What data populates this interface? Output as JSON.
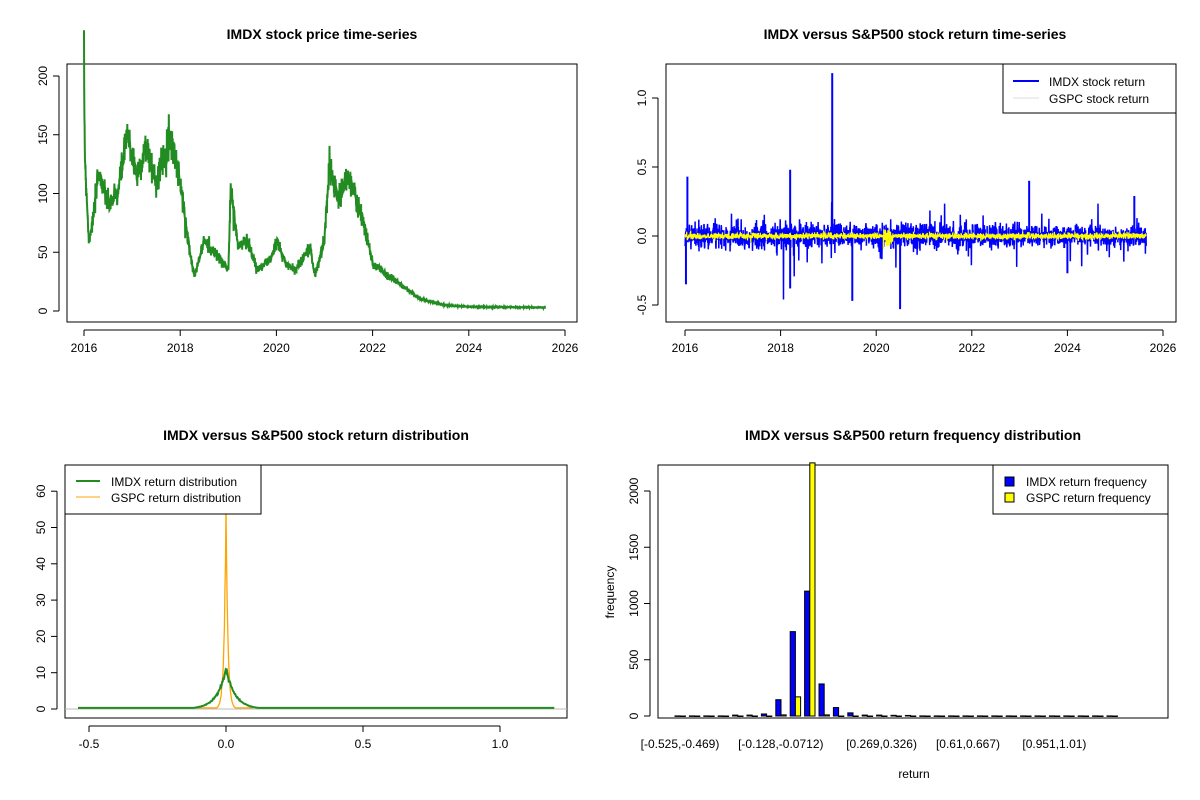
{
  "colors": {
    "price": "#228B22",
    "imdx_ret": "#0000FF",
    "gspc_ret": "#FFFF00",
    "imdx_dens": "#228B22",
    "gspc_dens": "#FFA500"
  },
  "chart_data": [
    {
      "type": "line",
      "title": "IMDX stock price time-series",
      "xlabel": "",
      "ylabel": "",
      "xlim": [
        2016,
        2026
      ],
      "ylim": [
        0,
        200
      ],
      "xticks": [
        "2016",
        "2018",
        "2020",
        "2022",
        "2024",
        "2026"
      ],
      "yticks": [
        "0",
        "50",
        "100",
        "150",
        "200"
      ],
      "series": [
        {
          "name": "IMDX price",
          "x": [
            2016.0,
            2016.02,
            2016.1,
            2016.2,
            2016.3,
            2016.5,
            2016.7,
            2016.9,
            2017.1,
            2017.3,
            2017.5,
            2017.8,
            2018.0,
            2018.2,
            2018.3,
            2018.5,
            2018.8,
            2019.0,
            2019.05,
            2019.2,
            2019.4,
            2019.6,
            2019.9,
            2020.0,
            2020.2,
            2020.4,
            2020.7,
            2020.8,
            2021.0,
            2021.1,
            2021.3,
            2021.5,
            2021.7,
            2021.9,
            2022.0,
            2022.5,
            2023.0,
            2023.5,
            2024.0,
            2025.6
          ],
          "y": [
            200,
            130,
            60,
            80,
            120,
            90,
            100,
            150,
            115,
            140,
            110,
            150,
            110,
            50,
            30,
            60,
            45,
            35,
            105,
            55,
            60,
            35,
            45,
            60,
            40,
            35,
            55,
            30,
            60,
            125,
            95,
            115,
            90,
            60,
            40,
            25,
            10,
            5,
            3.5,
            3
          ]
        }
      ]
    },
    {
      "type": "line",
      "title": "IMDX versus S&P500 stock return time-series",
      "xlim": [
        2016,
        2026
      ],
      "ylim": [
        -0.55,
        1.2
      ],
      "xticks": [
        "2016",
        "2018",
        "2020",
        "2022",
        "2024",
        "2026"
      ],
      "yticks": [
        "-0.5",
        "0.0",
        "0.5",
        "1.0"
      ],
      "legend": {
        "position": "top-right",
        "entries": [
          "IMDX stock return",
          "GSPC stock return"
        ]
      },
      "series": [
        {
          "name": "IMDX stock return",
          "spikes": [
            [
              2016.02,
              -0.35
            ],
            [
              2016.05,
              0.43
            ],
            [
              2018.2,
              0.48
            ],
            [
              2018.2,
              -0.38
            ],
            [
              2019.08,
              1.18
            ],
            [
              2019.5,
              -0.47
            ],
            [
              2020.5,
              -0.53
            ],
            [
              2023.2,
              0.4
            ],
            [
              2024.0,
              -0.27
            ],
            [
              2025.4,
              0.29
            ]
          ]
        },
        {
          "name": "GSPC stock return"
        }
      ]
    },
    {
      "type": "line",
      "title": "IMDX versus S&P500 stock return distribution",
      "xlim": [
        -0.55,
        1.22
      ],
      "ylim": [
        0,
        65
      ],
      "xticks": [
        "-0.5",
        "0.0",
        "0.5",
        "1.0"
      ],
      "yticks": [
        "0",
        "10",
        "20",
        "30",
        "40",
        "50",
        "60"
      ],
      "legend": {
        "position": "top-left",
        "entries": [
          "IMDX return distribution",
          "GSPC return distribution"
        ]
      },
      "series": [
        {
          "name": "IMDX return distribution",
          "peak": 11,
          "sd": 0.04
        },
        {
          "name": "GSPC return distribution",
          "peak": 57,
          "sd": 0.008
        }
      ]
    },
    {
      "type": "bar",
      "title": "IMDX versus S&P500 return frequency distribution",
      "xlabel": "return",
      "ylabel": "frequency",
      "ylim": [
        0,
        2250
      ],
      "yticks": [
        "0",
        "500",
        "1000",
        "1500",
        "2000"
      ],
      "xtick_labels": [
        {
          "bin": 0,
          "label": "[-0.525,-0.469)"
        },
        {
          "bin": 7,
          "label": "[-0.128,-0.0712)"
        },
        {
          "bin": 14,
          "label": "[0.269,0.326)"
        },
        {
          "bin": 20,
          "label": "[0.61,0.667)"
        },
        {
          "bin": 26,
          "label": "[0.951,1.01)"
        }
      ],
      "legend": {
        "position": "top-right",
        "entries": [
          "IMDX return frequency",
          "GSPC return frequency"
        ]
      },
      "series": [
        {
          "name": "IMDX return frequency",
          "values": [
            1,
            1,
            1,
            1,
            8,
            8,
            18,
            145,
            750,
            1110,
            285,
            75,
            28,
            8,
            8,
            6,
            5,
            1,
            1,
            1,
            1,
            1,
            1,
            1,
            1,
            1,
            1,
            1,
            1,
            1,
            1
          ]
        },
        {
          "name": "GSPC return frequency",
          "values": [
            0,
            0,
            0,
            0,
            0,
            0,
            0,
            10,
            170,
            2300,
            10,
            0,
            0,
            0,
            0,
            0,
            0,
            0,
            0,
            0,
            0,
            0,
            0,
            0,
            0,
            0,
            0,
            0,
            0,
            0,
            0
          ]
        }
      ]
    }
  ]
}
